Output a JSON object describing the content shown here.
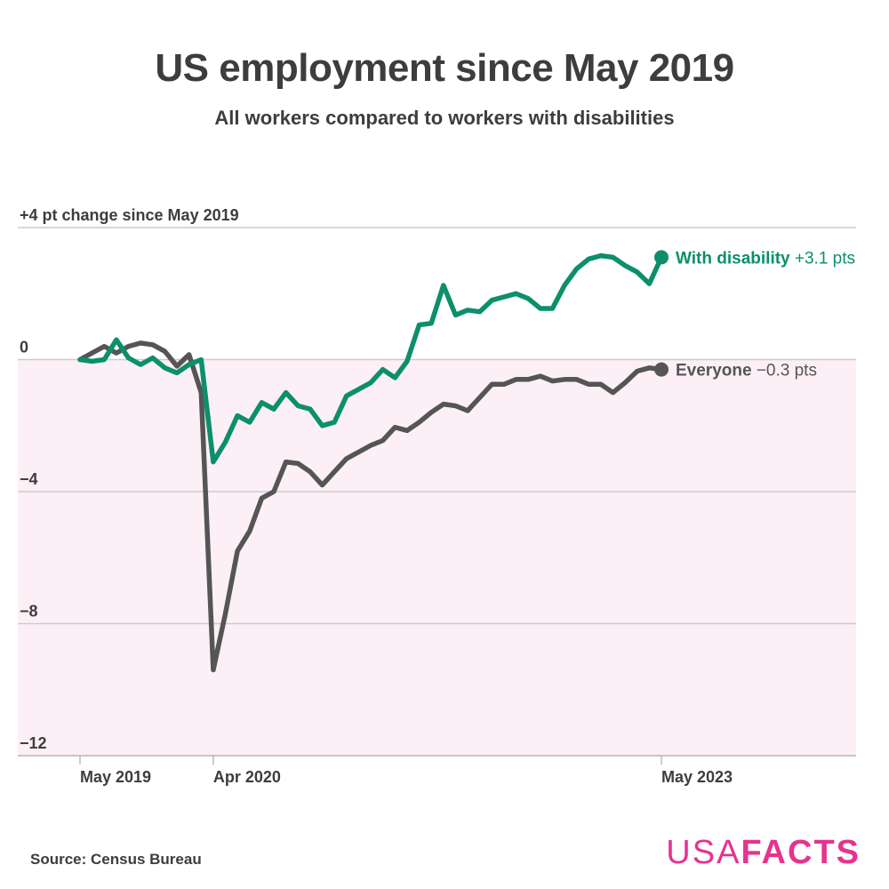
{
  "title": "US employment since May 2019",
  "subtitle": "All workers compared to workers with disabilities",
  "source": "Source: Census Bureau",
  "logo": {
    "part1": "USA",
    "part2": "FACTS"
  },
  "colors": {
    "disability": "#0c8f6b",
    "everyone": "#555555",
    "negative_band": "#fcf0f6",
    "grid": "#cccccc",
    "logo": "#e5338f"
  },
  "chart_data": {
    "type": "line",
    "ylim": [
      -12,
      4
    ],
    "yticks": [
      4,
      0,
      -4,
      -8,
      -12
    ],
    "ytick_labels": [
      "+4 pt change since May 2019",
      "0",
      "−4",
      "−8",
      "−12"
    ],
    "x_start": "2019-05",
    "x_end": "2023-05",
    "x_ticks": [
      {
        "date": "2019-05",
        "label": "May 2019"
      },
      {
        "date": "2020-04",
        "label": "Apr 2020"
      },
      {
        "date": "2023-05",
        "label": "May 2023"
      }
    ],
    "x": [
      "2019-05",
      "2019-06",
      "2019-07",
      "2019-08",
      "2019-09",
      "2019-10",
      "2019-11",
      "2019-12",
      "2020-01",
      "2020-02",
      "2020-03",
      "2020-04",
      "2020-05",
      "2020-06",
      "2020-07",
      "2020-08",
      "2020-09",
      "2020-10",
      "2020-11",
      "2020-12",
      "2021-01",
      "2021-02",
      "2021-03",
      "2021-04",
      "2021-05",
      "2021-06",
      "2021-07",
      "2021-08",
      "2021-09",
      "2021-10",
      "2021-11",
      "2021-12",
      "2022-01",
      "2022-02",
      "2022-03",
      "2022-04",
      "2022-05",
      "2022-06",
      "2022-07",
      "2022-08",
      "2022-09",
      "2022-10",
      "2022-11",
      "2022-12",
      "2023-01",
      "2023-02",
      "2023-03",
      "2023-04",
      "2023-05"
    ],
    "series": [
      {
        "name": "With disability",
        "label_value": "+3.1 pts",
        "color": "#0c8f6b",
        "values": [
          0,
          -0.05,
          0,
          0.6,
          0.05,
          -0.15,
          0.05,
          -0.25,
          -0.4,
          -0.15,
          0,
          -3.1,
          -2.5,
          -1.7,
          -1.9,
          -1.3,
          -1.5,
          -1.0,
          -1.4,
          -1.5,
          -2.0,
          -1.9,
          -1.1,
          -0.9,
          -0.7,
          -0.3,
          -0.55,
          -0.05,
          1.05,
          1.1,
          2.25,
          1.35,
          1.5,
          1.45,
          1.8,
          1.9,
          2.0,
          1.85,
          1.55,
          1.55,
          2.25,
          2.75,
          3.05,
          3.15,
          3.1,
          2.85,
          2.65,
          2.3,
          3.1
        ]
      },
      {
        "name": "Everyone",
        "label_value": "−0.3 pts",
        "color": "#555555",
        "values": [
          0,
          0.2,
          0.4,
          0.2,
          0.4,
          0.5,
          0.45,
          0.25,
          -0.2,
          0.15,
          -1.0,
          -9.4,
          -7.7,
          -5.8,
          -5.2,
          -4.2,
          -4.0,
          -3.1,
          -3.15,
          -3.4,
          -3.8,
          -3.4,
          -3.0,
          -2.8,
          -2.6,
          -2.45,
          -2.05,
          -2.15,
          -1.9,
          -1.6,
          -1.35,
          -1.4,
          -1.55,
          -1.15,
          -0.75,
          -0.75,
          -0.6,
          -0.6,
          -0.5,
          -0.65,
          -0.6,
          -0.6,
          -0.75,
          -0.75,
          -1.0,
          -0.7,
          -0.35,
          -0.25,
          -0.3
        ]
      }
    ]
  }
}
